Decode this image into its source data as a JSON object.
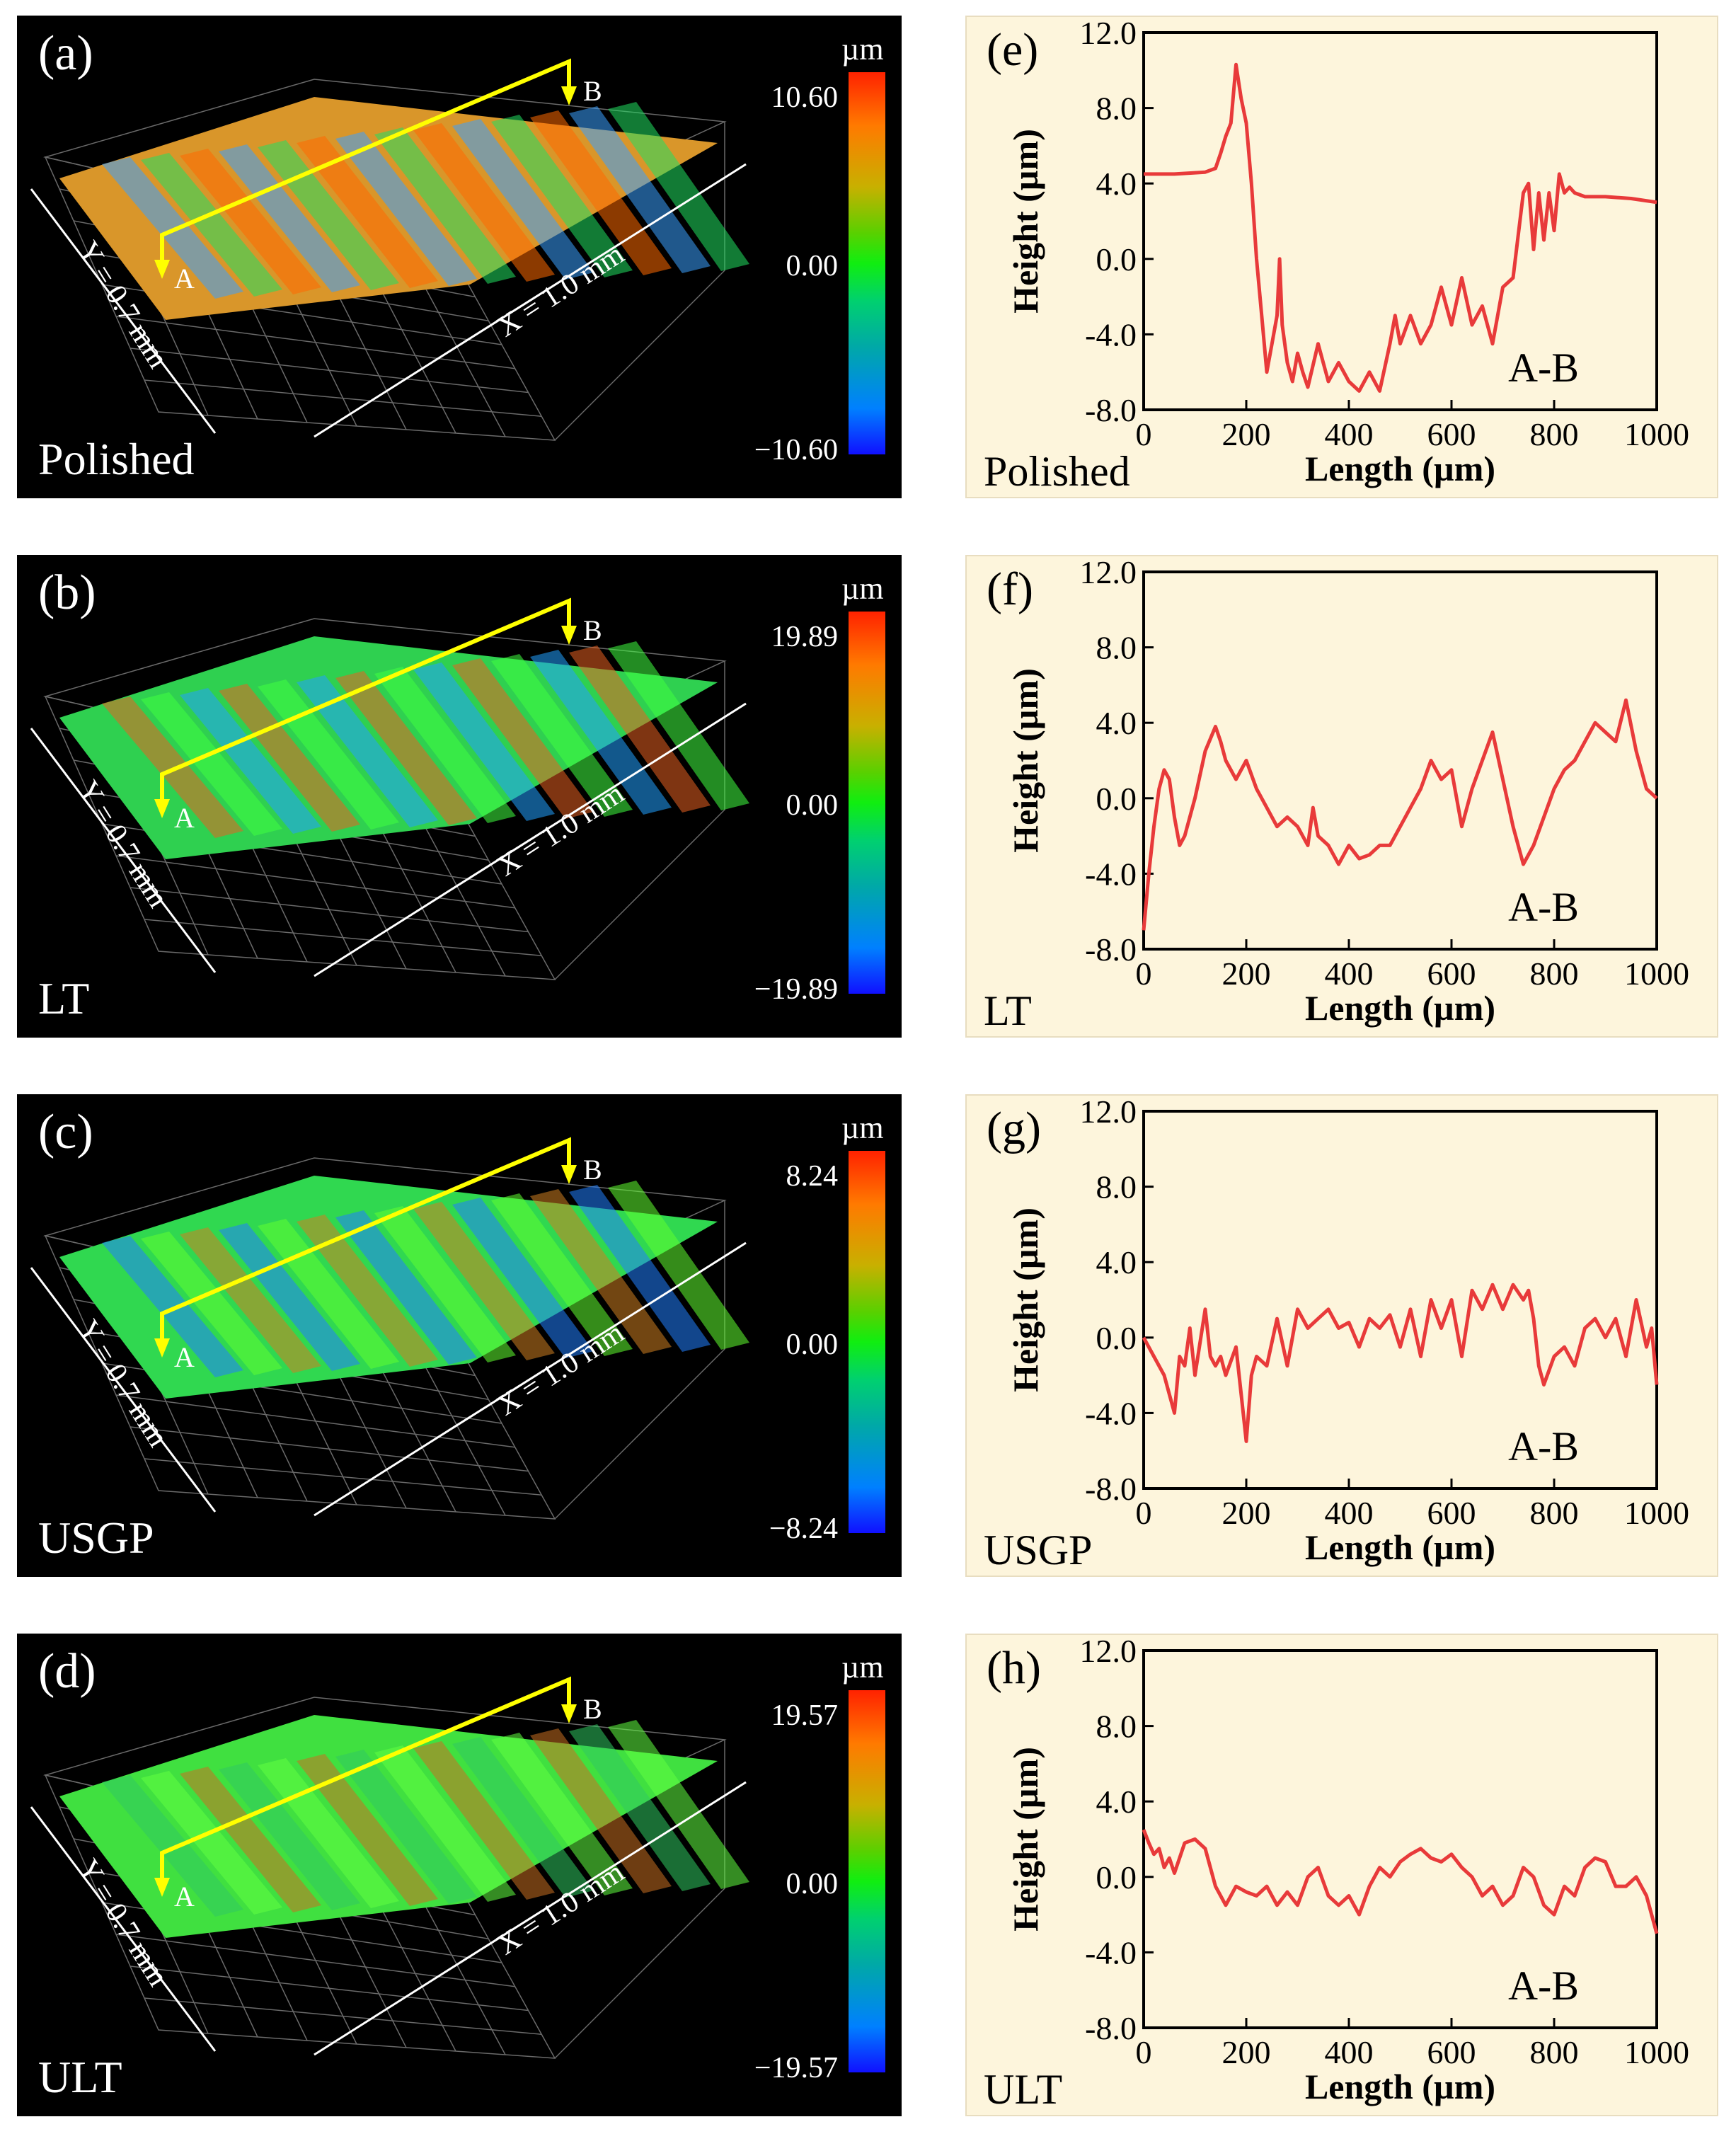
{
  "colors": {
    "profile": "#e83a3a",
    "bg3d": "#000000",
    "bg2d": "#fdf5dc",
    "section": "#ffff00"
  },
  "surface_panels": [
    {
      "label": "(a)",
      "sample": "Polished",
      "unit": "µm",
      "scale_max": "10.60",
      "scale_mid": "0.00",
      "scale_min": "−10.60",
      "y_dim": "Y = 0.7 mm",
      "x_dim": "X = 1.0 mm",
      "point_a": "A",
      "point_b": "B"
    },
    {
      "label": "(b)",
      "sample": "LT",
      "unit": "µm",
      "scale_max": "19.89",
      "scale_mid": "0.00",
      "scale_min": "−19.89",
      "y_dim": "Y = 0.7 mm",
      "x_dim": "X = 1.0 mm",
      "point_a": "A",
      "point_b": "B"
    },
    {
      "label": "(c)",
      "sample": "USGP",
      "unit": "µm",
      "scale_max": "8.24",
      "scale_mid": "0.00",
      "scale_min": "−8.24",
      "y_dim": "Y = 0.7 mm",
      "x_dim": "X = 1.0 mm",
      "point_a": "A",
      "point_b": "B"
    },
    {
      "label": "(d)",
      "sample": "ULT",
      "unit": "µm",
      "scale_max": "19.57",
      "scale_mid": "0.00",
      "scale_min": "−19.57",
      "y_dim": "Y = 0.7 mm",
      "x_dim": "X = 1.0 mm",
      "point_a": "A",
      "point_b": "B"
    }
  ],
  "chart_data": [
    {
      "type": "line",
      "label": "(e)",
      "sample": "Polished",
      "annotation": "A-B",
      "xlabel": "Length (µm)",
      "ylabel": "Height (µm)",
      "xlim": [
        0,
        1000
      ],
      "ylim": [
        -8,
        12
      ],
      "xticks": [
        "0",
        "200",
        "400",
        "600",
        "800",
        "1000"
      ],
      "yticks": [
        "12.0",
        "8.0",
        "4.0",
        "0.0",
        "-4.0",
        "-8.0"
      ],
      "x": [
        0,
        60,
        120,
        140,
        150,
        160,
        170,
        180,
        190,
        200,
        210,
        220,
        230,
        240,
        250,
        260,
        265,
        270,
        280,
        290,
        300,
        310,
        320,
        340,
        360,
        380,
        400,
        420,
        440,
        460,
        480,
        490,
        500,
        520,
        540,
        560,
        580,
        600,
        620,
        640,
        660,
        680,
        700,
        720,
        740,
        750,
        760,
        770,
        780,
        790,
        800,
        810,
        820,
        830,
        840,
        860,
        900,
        950,
        1000
      ],
      "y": [
        4.5,
        4.5,
        4.6,
        4.8,
        5.6,
        6.5,
        7.2,
        10.3,
        8.5,
        7.2,
        4.0,
        0.0,
        -3.0,
        -6.0,
        -4.5,
        -3.0,
        0.0,
        -3.5,
        -5.5,
        -6.5,
        -5.0,
        -6.0,
        -6.8,
        -4.5,
        -6.5,
        -5.5,
        -6.5,
        -7.0,
        -6.0,
        -7.0,
        -4.5,
        -3.0,
        -4.5,
        -3.0,
        -4.5,
        -3.5,
        -1.5,
        -3.5,
        -1.0,
        -3.5,
        -2.5,
        -4.5,
        -1.5,
        -1.0,
        3.5,
        4.0,
        0.5,
        3.5,
        1.0,
        3.5,
        1.5,
        4.5,
        3.5,
        3.8,
        3.5,
        3.3,
        3.3,
        3.2,
        3.0
      ]
    },
    {
      "type": "line",
      "label": "(f)",
      "sample": "LT",
      "annotation": "A-B",
      "xlabel": "Length (µm)",
      "ylabel": "Height (µm)",
      "xlim": [
        0,
        1000
      ],
      "ylim": [
        -8,
        12
      ],
      "xticks": [
        "0",
        "200",
        "400",
        "600",
        "800",
        "1000"
      ],
      "yticks": [
        "12.0",
        "8.0",
        "4.0",
        "0.0",
        "-4.0",
        "-8.0"
      ],
      "x": [
        0,
        10,
        20,
        30,
        40,
        50,
        60,
        70,
        80,
        100,
        120,
        140,
        150,
        160,
        180,
        200,
        220,
        240,
        260,
        280,
        300,
        320,
        330,
        340,
        360,
        380,
        400,
        420,
        440,
        460,
        480,
        500,
        520,
        540,
        560,
        580,
        600,
        620,
        640,
        660,
        680,
        700,
        720,
        740,
        760,
        780,
        800,
        820,
        840,
        860,
        880,
        900,
        920,
        940,
        960,
        980,
        1000
      ],
      "y": [
        -7.0,
        -4.0,
        -1.5,
        0.5,
        1.5,
        1.0,
        -1.0,
        -2.5,
        -2.0,
        0.0,
        2.5,
        3.8,
        3.0,
        2.0,
        1.0,
        2.0,
        0.5,
        -0.5,
        -1.5,
        -1.0,
        -1.5,
        -2.5,
        -0.5,
        -2.0,
        -2.5,
        -3.5,
        -2.5,
        -3.2,
        -3.0,
        -2.5,
        -2.5,
        -1.5,
        -0.5,
        0.5,
        2.0,
        1.0,
        1.5,
        -1.5,
        0.5,
        2.0,
        3.5,
        1.0,
        -1.5,
        -3.5,
        -2.5,
        -1.0,
        0.5,
        1.5,
        2.0,
        3.0,
        4.0,
        3.5,
        3.0,
        5.2,
        2.5,
        0.5,
        0.0
      ]
    },
    {
      "type": "line",
      "label": "(g)",
      "sample": "USGP",
      "annotation": "A-B",
      "xlabel": "Length (µm)",
      "ylabel": "Height (µm)",
      "xlim": [
        0,
        1000
      ],
      "ylim": [
        -8,
        12
      ],
      "xticks": [
        "0",
        "200",
        "400",
        "600",
        "800",
        "1000"
      ],
      "yticks": [
        "12.0",
        "8.0",
        "4.0",
        "0.0",
        "-4.0",
        "-8.0"
      ],
      "x": [
        0,
        20,
        40,
        60,
        70,
        80,
        90,
        100,
        120,
        130,
        140,
        150,
        160,
        180,
        190,
        200,
        210,
        220,
        240,
        260,
        280,
        300,
        320,
        340,
        360,
        380,
        400,
        420,
        440,
        460,
        480,
        500,
        520,
        540,
        560,
        580,
        600,
        620,
        640,
        660,
        680,
        700,
        720,
        740,
        750,
        760,
        770,
        780,
        800,
        820,
        840,
        860,
        880,
        900,
        920,
        940,
        960,
        980,
        990,
        1000
      ],
      "y": [
        0.0,
        -1.0,
        -2.0,
        -4.0,
        -1.0,
        -1.5,
        0.5,
        -2.0,
        1.5,
        -1.0,
        -1.5,
        -1.0,
        -2.0,
        -0.5,
        -3.0,
        -5.5,
        -2.0,
        -1.0,
        -1.5,
        1.0,
        -1.5,
        1.5,
        0.5,
        1.0,
        1.5,
        0.5,
        0.8,
        -0.5,
        1.0,
        0.5,
        1.2,
        -0.5,
        1.5,
        -1.0,
        2.0,
        0.5,
        2.0,
        -1.0,
        2.5,
        1.5,
        2.8,
        1.5,
        2.8,
        2.0,
        2.5,
        1.0,
        -1.5,
        -2.5,
        -1.0,
        -0.5,
        -1.5,
        0.5,
        1.0,
        0.0,
        1.0,
        -1.0,
        2.0,
        -0.5,
        0.5,
        -2.5
      ]
    },
    {
      "type": "line",
      "label": "(h)",
      "sample": "ULT",
      "annotation": "A-B",
      "xlabel": "Length (µm)",
      "ylabel": "Height (µm)",
      "xlim": [
        0,
        1000
      ],
      "ylim": [
        -8,
        12
      ],
      "xticks": [
        "0",
        "200",
        "400",
        "600",
        "800",
        "1000"
      ],
      "yticks": [
        "12.0",
        "8.0",
        "4.0",
        "0.0",
        "-4.0",
        "-8.0"
      ],
      "x": [
        0,
        10,
        20,
        30,
        40,
        50,
        60,
        80,
        100,
        120,
        140,
        160,
        180,
        200,
        220,
        240,
        260,
        280,
        300,
        320,
        340,
        360,
        380,
        400,
        420,
        440,
        460,
        480,
        500,
        520,
        540,
        560,
        580,
        600,
        620,
        640,
        660,
        680,
        700,
        720,
        740,
        760,
        780,
        800,
        820,
        840,
        860,
        880,
        900,
        920,
        940,
        960,
        980,
        1000
      ],
      "y": [
        2.5,
        1.8,
        1.2,
        1.5,
        0.5,
        1.0,
        0.2,
        1.8,
        2.0,
        1.5,
        -0.5,
        -1.5,
        -0.5,
        -0.8,
        -1.0,
        -0.5,
        -1.5,
        -0.8,
        -1.5,
        0.0,
        0.5,
        -1.0,
        -1.5,
        -1.0,
        -2.0,
        -0.5,
        0.5,
        0.0,
        0.8,
        1.2,
        1.5,
        1.0,
        0.8,
        1.2,
        0.5,
        0.0,
        -1.0,
        -0.5,
        -1.5,
        -1.0,
        0.5,
        0.0,
        -1.5,
        -2.0,
        -0.5,
        -1.0,
        0.5,
        1.0,
        0.8,
        -0.5,
        -0.5,
        0.0,
        -1.0,
        -3.0
      ]
    }
  ]
}
